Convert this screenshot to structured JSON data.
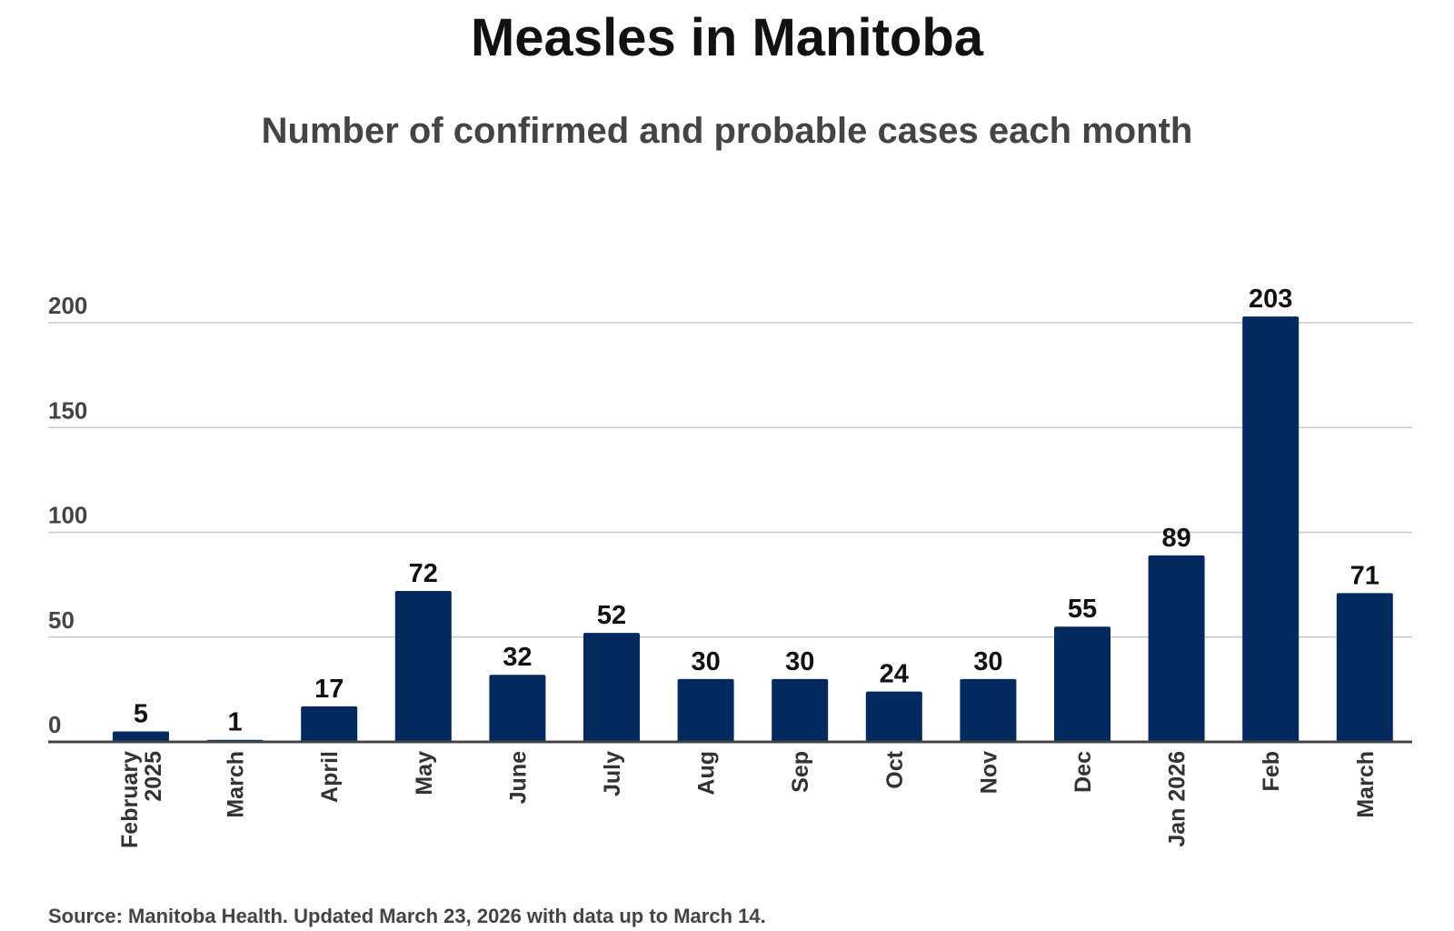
{
  "chart_data": {
    "type": "bar",
    "title": "Measles in Manitoba",
    "subtitle": "Number of confirmed and probable cases each month",
    "categories": [
      "February 2025",
      "March",
      "April",
      "May",
      "June",
      "July",
      "Aug",
      "Sep",
      "Oct",
      "Nov",
      "Dec",
      "Jan 2026",
      "Feb",
      "March"
    ],
    "values": [
      5,
      1,
      17,
      72,
      32,
      52,
      30,
      30,
      24,
      30,
      55,
      89,
      203,
      71
    ],
    "yticks": [
      "0",
      "50",
      "100",
      "150",
      "200"
    ],
    "ylim": [
      0,
      200
    ],
    "grid": true,
    "xlabel": "",
    "ylabel": "",
    "bar_color": "#022a5e",
    "source": "Source: Manitoba Health. Updated March 23, 2026 with data up to March 14."
  }
}
